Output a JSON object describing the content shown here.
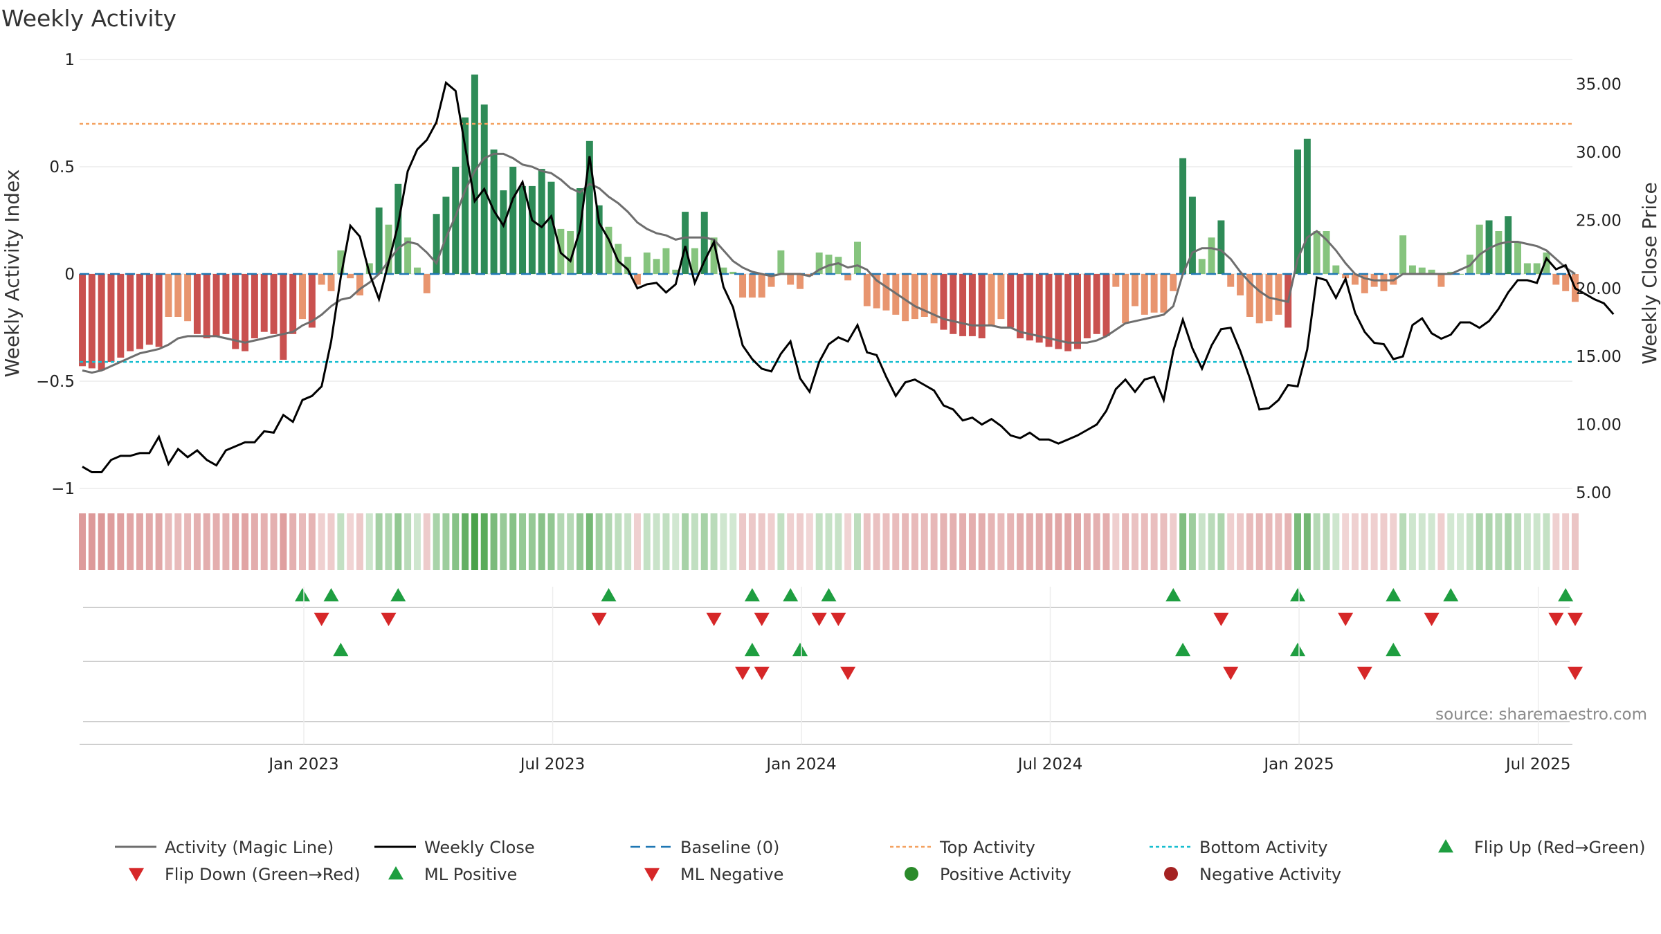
{
  "chart_data": {
    "type": "bar",
    "title": "Weekly Activity",
    "ylabel": "Weekly Activity Index",
    "ylabel_right": "Weekly Close Price",
    "ylim": [
      -1,
      1
    ],
    "ylim_right": [
      5,
      36.5
    ],
    "y_ticks": [
      "1",
      "0.5",
      "0",
      "−0.5",
      "−1"
    ],
    "y_right_ticks": [
      "35.00",
      "30.00",
      "25.00",
      "20.00",
      "15.00",
      "10.00",
      "5.00"
    ],
    "x_ticks": [
      "Jan 2023",
      "Jul 2023",
      "Jan 2024",
      "Jul 2024",
      "Jan 2025",
      "Jul 2025"
    ],
    "source": "source: sharemaestro.com",
    "top_activity": 0.7,
    "bottom_activity": -0.41,
    "colors": {
      "pos_strong": "#2e8b57",
      "pos_weak": "#86c47e",
      "neg_strong": "#c9514f",
      "neg_weak": "#e8956f",
      "magic": "#6e6e6e",
      "close": "#000000",
      "baseline": "#1f77b4",
      "top": "#f4a261",
      "bottom": "#17becf",
      "up": "#1e9e40",
      "down": "#d62728",
      "pos_dot": "#2a8a2a",
      "neg_dot": "#a52222"
    },
    "activity": [
      -0.43,
      -0.44,
      -0.45,
      -0.41,
      -0.39,
      -0.36,
      -0.35,
      -0.33,
      -0.34,
      -0.2,
      -0.2,
      -0.22,
      -0.28,
      -0.3,
      -0.29,
      -0.28,
      -0.35,
      -0.36,
      -0.3,
      -0.27,
      -0.28,
      -0.4,
      -0.28,
      -0.21,
      -0.25,
      -0.05,
      -0.08,
      0.11,
      -0.02,
      -0.1,
      0.05,
      0.31,
      0.23,
      0.42,
      0.17,
      0.03,
      -0.09,
      0.28,
      0.36,
      0.5,
      0.73,
      0.93,
      0.79,
      0.58,
      0.39,
      0.5,
      0.41,
      0.41,
      0.49,
      0.43,
      0.21,
      0.2,
      0.4,
      0.62,
      0.32,
      0.22,
      0.14,
      0.08,
      -0.05,
      0.1,
      0.07,
      0.12,
      0.02,
      0.29,
      0.12,
      0.29,
      0.17,
      0.03,
      0.01,
      -0.11,
      -0.11,
      -0.11,
      -0.06,
      0.11,
      -0.05,
      -0.07,
      -0.01,
      0.1,
      0.09,
      0.08,
      -0.03,
      0.15,
      -0.15,
      -0.16,
      -0.17,
      -0.19,
      -0.22,
      -0.21,
      -0.2,
      -0.23,
      -0.26,
      -0.28,
      -0.29,
      -0.29,
      -0.3,
      -0.24,
      -0.21,
      -0.25,
      -0.3,
      -0.31,
      -0.32,
      -0.34,
      -0.35,
      -0.36,
      -0.35,
      -0.3,
      -0.28,
      -0.29,
      -0.06,
      -0.23,
      -0.15,
      -0.19,
      -0.18,
      -0.18,
      -0.08,
      0.54,
      0.36,
      0.07,
      0.17,
      0.25,
      -0.06,
      -0.1,
      -0.2,
      -0.23,
      -0.22,
      -0.19,
      -0.25,
      0.58,
      0.63,
      0.2,
      0.2,
      0.04,
      -0.02,
      -0.05,
      -0.09,
      -0.06,
      -0.08,
      -0.05,
      0.18,
      0.04,
      0.03,
      0.02,
      -0.06,
      0.01,
      0.0,
      0.09,
      0.23,
      0.25,
      0.2,
      0.27,
      0.15,
      0.05,
      0.05,
      0.1,
      -0.05,
      -0.08,
      -0.13
    ],
    "magic_line": [
      -0.45,
      -0.46,
      -0.45,
      -0.43,
      -0.41,
      -0.39,
      -0.37,
      -0.36,
      -0.35,
      -0.33,
      -0.3,
      -0.29,
      -0.29,
      -0.29,
      -0.29,
      -0.3,
      -0.31,
      -0.32,
      -0.31,
      -0.3,
      -0.29,
      -0.28,
      -0.27,
      -0.24,
      -0.22,
      -0.19,
      -0.15,
      -0.12,
      -0.11,
      -0.07,
      -0.04,
      0.0,
      0.06,
      0.12,
      0.15,
      0.14,
      0.1,
      0.05,
      0.17,
      0.27,
      0.39,
      0.48,
      0.54,
      0.56,
      0.56,
      0.54,
      0.51,
      0.5,
      0.48,
      0.47,
      0.44,
      0.4,
      0.38,
      0.42,
      0.4,
      0.36,
      0.33,
      0.29,
      0.24,
      0.21,
      0.19,
      0.18,
      0.16,
      0.17,
      0.17,
      0.17,
      0.16,
      0.11,
      0.06,
      0.03,
      0.01,
      0.0,
      -0.01,
      0.0,
      0.0,
      0.0,
      -0.01,
      0.02,
      0.04,
      0.05,
      0.03,
      0.04,
      0.02,
      -0.03,
      -0.06,
      -0.09,
      -0.12,
      -0.15,
      -0.17,
      -0.19,
      -0.21,
      -0.22,
      -0.23,
      -0.24,
      -0.24,
      -0.24,
      -0.25,
      -0.25,
      -0.27,
      -0.28,
      -0.29,
      -0.3,
      -0.31,
      -0.32,
      -0.32,
      -0.32,
      -0.31,
      -0.29,
      -0.26,
      -0.23,
      -0.22,
      -0.21,
      -0.2,
      -0.19,
      -0.15,
      0.0,
      0.1,
      0.12,
      0.12,
      0.11,
      0.07,
      0.01,
      -0.04,
      -0.08,
      -0.11,
      -0.12,
      -0.13,
      0.07,
      0.17,
      0.2,
      0.16,
      0.11,
      0.05,
      0.0,
      -0.02,
      -0.03,
      -0.03,
      -0.03,
      0.0,
      0.0,
      0.0,
      0.0,
      0.0,
      0.0,
      0.02,
      0.04,
      0.09,
      0.12,
      0.14,
      0.15,
      0.15,
      0.14,
      0.13,
      0.11,
      0.07,
      0.03,
      0.0
    ],
    "weekly_close": [
      6.9,
      6.5,
      6.5,
      7.4,
      7.7,
      7.7,
      7.9,
      7.9,
      9.1,
      7.1,
      8.2,
      7.6,
      8.1,
      7.4,
      7.0,
      8.1,
      8.4,
      8.7,
      8.7,
      9.5,
      9.4,
      10.7,
      10.2,
      11.8,
      12.1,
      12.8,
      16.1,
      20.8,
      24.6,
      23.8,
      21.1,
      19.2,
      21.9,
      24.7,
      28.6,
      30.2,
      30.9,
      32.2,
      35.1,
      34.5,
      30.4,
      26.4,
      27.3,
      25.7,
      24.6,
      26.6,
      27.8,
      25.0,
      24.5,
      25.3,
      22.6,
      22.0,
      24.3,
      29.7,
      24.8,
      23.6,
      22.0,
      21.4,
      20.0,
      20.3,
      20.4,
      19.7,
      20.3,
      23.1,
      20.4,
      22.0,
      23.4,
      20.1,
      18.6,
      15.8,
      14.8,
      14.1,
      13.9,
      15.2,
      16.1,
      13.4,
      12.4,
      14.6,
      15.9,
      16.4,
      16.1,
      17.3,
      15.3,
      15.1,
      13.5,
      12.1,
      13.1,
      13.3,
      12.9,
      12.5,
      11.4,
      11.1,
      10.3,
      10.5,
      10.0,
      10.4,
      9.9,
      9.2,
      9.0,
      9.4,
      8.9,
      8.9,
      8.6,
      8.9,
      9.2,
      9.6,
      10.0,
      11.0,
      12.6,
      13.3,
      12.4,
      13.3,
      13.5,
      11.8,
      15.4,
      17.7,
      15.6,
      14.1,
      15.8,
      17.0,
      17.1,
      15.4,
      13.4,
      11.1,
      11.2,
      11.8,
      12.9,
      12.8,
      15.5,
      20.8,
      20.6,
      19.3,
      20.7,
      18.2,
      16.8,
      16.0,
      15.9,
      14.8,
      15.0,
      17.3,
      17.8,
      16.7,
      16.3,
      16.6,
      17.5,
      17.5,
      17.1,
      17.6,
      18.5,
      19.7,
      20.6,
      20.6,
      20.4,
      22.2,
      21.4,
      21.7,
      20.0,
      19.6,
      19.2,
      18.9,
      18.1
    ],
    "flip_up": [
      23,
      26,
      33,
      55,
      70,
      74,
      78,
      114,
      127,
      137,
      143,
      155
    ],
    "flip_down": [
      25,
      32,
      54,
      66,
      71,
      77,
      79,
      119,
      132,
      141,
      154,
      156
    ],
    "ml_positive": [
      27,
      70,
      75,
      115,
      127,
      137
    ],
    "ml_negative": [
      69,
      71,
      80,
      120,
      134,
      156
    ],
    "legend": [
      "Activity (Magic Line)",
      "Weekly Close",
      "Baseline (0)",
      "Top Activity",
      "Bottom Activity",
      "Flip Up (Red→Green)",
      "Flip Down (Green→Red)",
      "ML Positive",
      "ML Negative",
      "Positive Activity",
      "Negative Activity"
    ]
  }
}
